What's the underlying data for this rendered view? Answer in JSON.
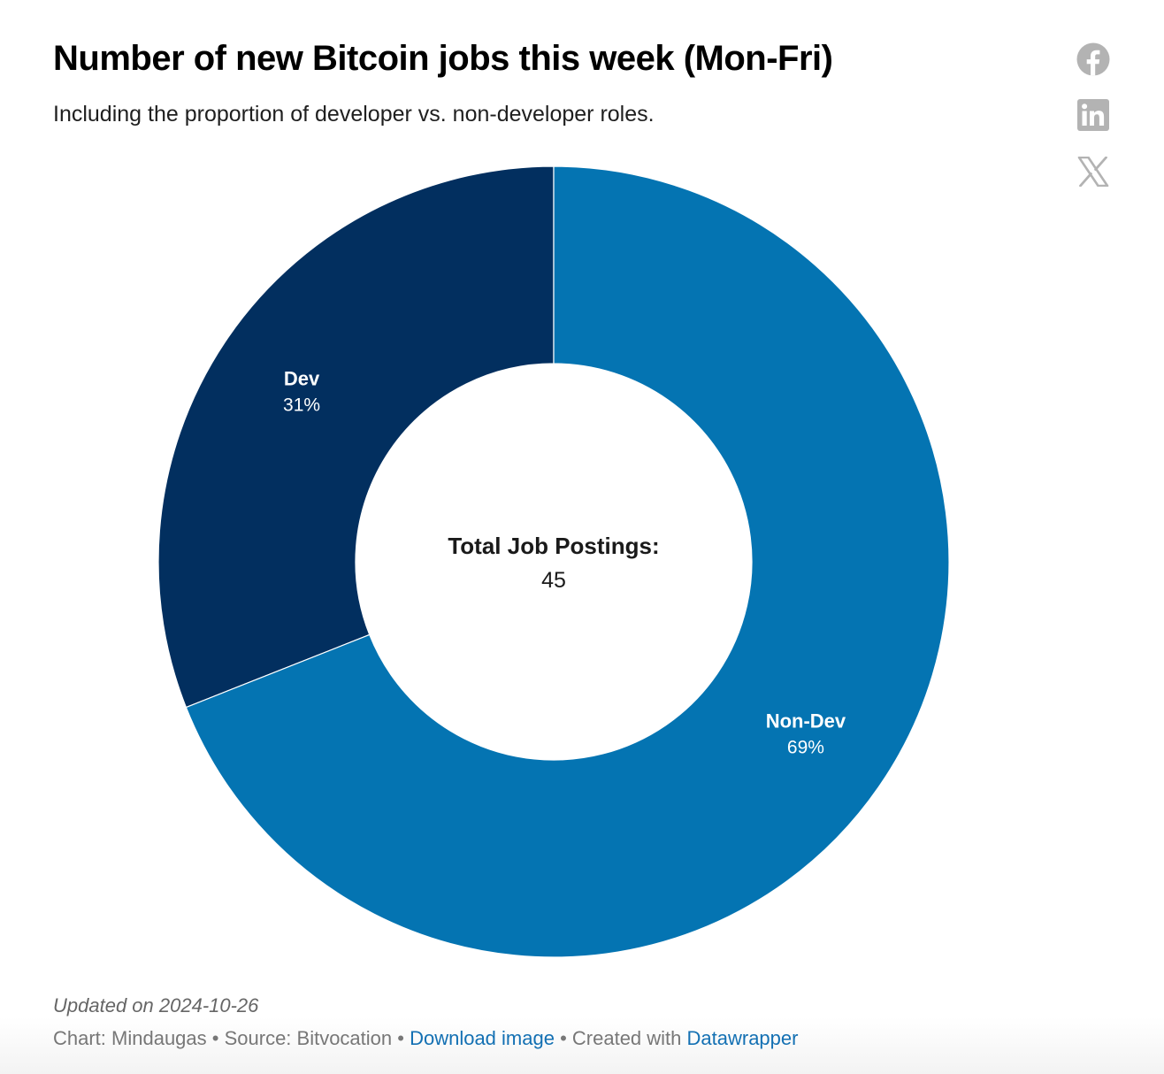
{
  "header": {
    "title": "Number of new Bitcoin jobs this week (Mon-Fri)",
    "subtitle": "Including the proportion of developer vs. non-developer roles."
  },
  "share": {
    "facebook_icon": "facebook-icon",
    "linkedin_icon": "linkedin-icon",
    "x_icon": "x-icon",
    "icon_color": "#b3b3b3"
  },
  "chart_data": {
    "type": "pie",
    "variant": "donut",
    "title": "Number of new Bitcoin jobs this week (Mon-Fri)",
    "subtitle": "Including the proportion of developer vs. non-developer roles.",
    "slices": [
      {
        "label": "Dev",
        "value": 31,
        "value_label": "31%",
        "color": "#022f5f"
      },
      {
        "label": "Non-Dev",
        "value": 69,
        "value_label": "69%",
        "color": "#0474b2"
      }
    ],
    "center_label": "Total Job Postings:",
    "center_value": "45"
  },
  "footer": {
    "updated": "Updated on 2024-10-26",
    "chart_prefix": "Chart: Mindaugas",
    "separator": " • ",
    "source": "Source: Bitvocation",
    "download": "Download image",
    "created_with": "Created with ",
    "datawrapper": "Datawrapper"
  }
}
